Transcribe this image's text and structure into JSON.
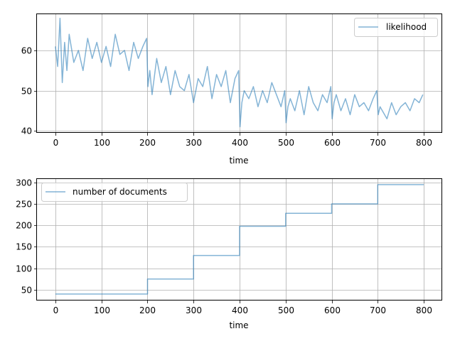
{
  "chart_data": [
    {
      "type": "line",
      "title": "",
      "xlabel": "time",
      "ylabel": "",
      "xlim": [
        -40,
        840
      ],
      "ylim": [
        39.5,
        69
      ],
      "xticks": [
        "0",
        "100",
        "200",
        "300",
        "400",
        "500",
        "600",
        "700",
        "800"
      ],
      "yticks": [
        "40",
        "50",
        "60"
      ],
      "grid": true,
      "legend_position": "top-right",
      "series": [
        {
          "name": "likelihood",
          "color": "#1f77b4",
          "x": [
            0,
            5,
            10,
            15,
            20,
            25,
            30,
            40,
            50,
            60,
            70,
            80,
            90,
            100,
            110,
            120,
            130,
            140,
            150,
            160,
            170,
            180,
            190,
            198,
            201,
            205,
            210,
            220,
            230,
            240,
            250,
            260,
            270,
            280,
            290,
            300,
            310,
            320,
            330,
            340,
            350,
            360,
            370,
            380,
            390,
            398,
            401,
            405,
            410,
            420,
            430,
            440,
            450,
            460,
            470,
            480,
            490,
            498,
            501,
            505,
            510,
            520,
            530,
            540,
            550,
            560,
            570,
            580,
            590,
            598,
            601,
            605,
            610,
            620,
            630,
            640,
            650,
            660,
            670,
            680,
            690,
            698,
            701,
            705,
            710,
            720,
            730,
            740,
            750,
            760,
            770,
            780,
            790,
            798
          ],
          "y": [
            61,
            56,
            68,
            52,
            62,
            55,
            64,
            57,
            60,
            55,
            63,
            58,
            62,
            57,
            61,
            56,
            64,
            59,
            60,
            55,
            62,
            58,
            61,
            63,
            51,
            55,
            49,
            58,
            52,
            56,
            49,
            55,
            51,
            50,
            54,
            47,
            53,
            51,
            56,
            48,
            54,
            51,
            55,
            47,
            53,
            55,
            41,
            47,
            50,
            48,
            51,
            46,
            50,
            47,
            52,
            49,
            46,
            50,
            42,
            46,
            48,
            45,
            50,
            44,
            51,
            47,
            45,
            49,
            47,
            51,
            43,
            47,
            49,
            45,
            48,
            44,
            49,
            46,
            47,
            45,
            48,
            50,
            44,
            46,
            45,
            43,
            47,
            44,
            46,
            47,
            45,
            48,
            47,
            49
          ]
        }
      ]
    },
    {
      "type": "line",
      "title": "",
      "xlabel": "time",
      "ylabel": "",
      "xlim": [
        -40,
        840
      ],
      "ylim": [
        25,
        308
      ],
      "xticks": [
        "0",
        "100",
        "200",
        "300",
        "400",
        "500",
        "600",
        "700",
        "800"
      ],
      "yticks": [
        "50",
        "100",
        "150",
        "200",
        "250",
        "300"
      ],
      "grid": true,
      "legend_position": "top-left",
      "series": [
        {
          "name": "number of documents",
          "color": "#1f77b4",
          "x": [
            0,
            200,
            200,
            300,
            300,
            400,
            400,
            500,
            500,
            600,
            600,
            700,
            700,
            800
          ],
          "y": [
            40,
            40,
            75,
            75,
            130,
            130,
            198,
            198,
            228,
            228,
            250,
            250,
            295,
            295
          ]
        }
      ]
    }
  ]
}
